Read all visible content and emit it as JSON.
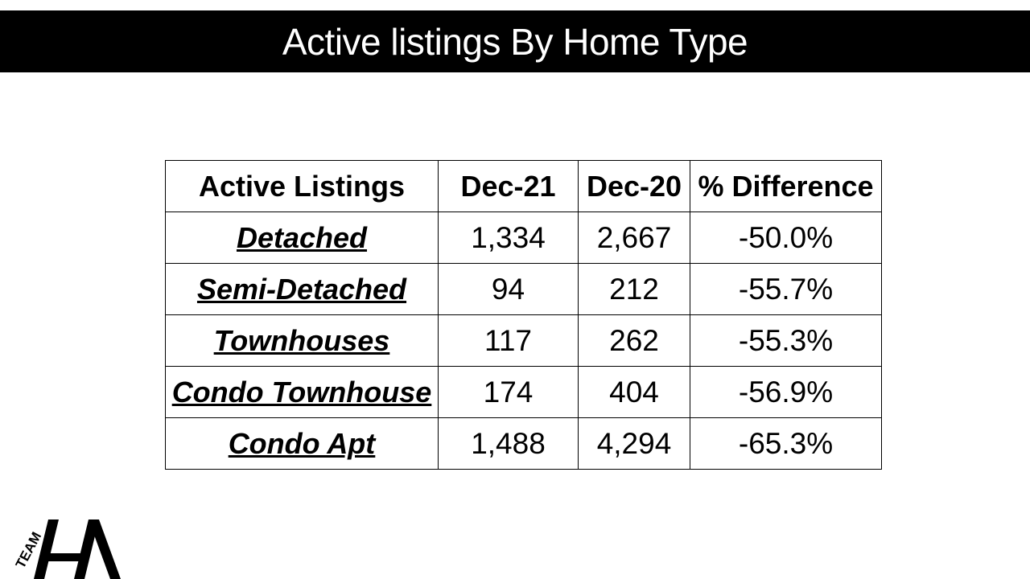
{
  "slide": {
    "title": "Active listings By Home Type"
  },
  "table": {
    "headers": [
      "Active Listings",
      "Dec-21",
      "Dec-20",
      "% Difference"
    ],
    "rows": [
      {
        "type": "Detached",
        "dec21": "1,334",
        "dec20": "2,667",
        "diff": "-50.0%"
      },
      {
        "type": "Semi-Detached",
        "dec21": "94",
        "dec20": "212",
        "diff": "-55.7%"
      },
      {
        "type": "Townhouses",
        "dec21": "117",
        "dec20": "262",
        "diff": "-55.3%"
      },
      {
        "type": "Condo Townhouse",
        "dec21": "174",
        "dec20": "404",
        "diff": "-56.9%"
      },
      {
        "type": "Condo Apt",
        "dec21": "1,488",
        "dec20": "4,294",
        "diff": "-65.3%"
      }
    ]
  },
  "logo": {
    "label": "TEAM",
    "letters": "HA"
  }
}
